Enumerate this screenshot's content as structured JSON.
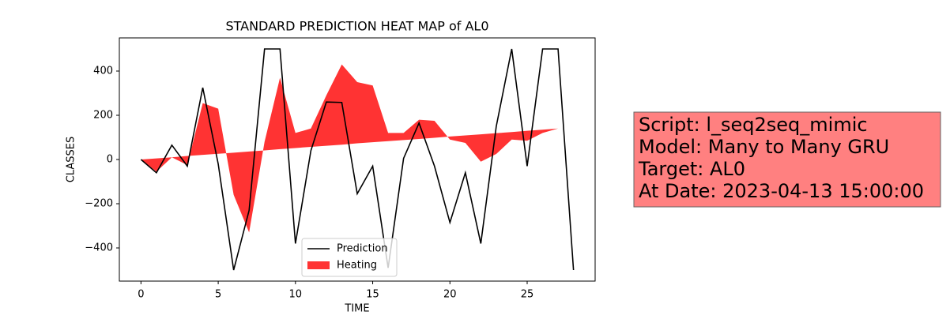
{
  "chart_data": {
    "type": "line",
    "title": "STANDARD PREDICTION HEAT MAP of AL0",
    "x_label": "TIME",
    "y_label": "CLASSES",
    "x": [
      0,
      1,
      2,
      3,
      4,
      5,
      6,
      7,
      8,
      9,
      10,
      11,
      12,
      13,
      14,
      15,
      16,
      17,
      18,
      19,
      20,
      21,
      22,
      23,
      24,
      25,
      26,
      27,
      28
    ],
    "series": [
      {
        "name": "Prediction",
        "color": "#000000",
        "values": [
          0,
          -60,
          65,
          -30,
          325,
          -20,
          -500,
          -230,
          500,
          500,
          -380,
          40,
          260,
          258,
          -155,
          -30,
          -490,
          5,
          165,
          -30,
          -285,
          -60,
          -380,
          150,
          500,
          -30,
          500,
          500,
          -500
        ]
      },
      {
        "name": "Heating",
        "color": "#ff0000",
        "fill": true,
        "values": [
          0,
          -55,
          10,
          -25,
          255,
          230,
          -160,
          -330,
          80,
          370,
          120,
          140,
          290,
          430,
          350,
          335,
          120,
          120,
          180,
          175,
          90,
          75,
          -10,
          25,
          90,
          85,
          120,
          140,
          145
        ],
        "base": [
          0,
          5,
          10,
          16,
          21,
          26,
          31,
          36,
          41,
          47,
          52,
          57,
          62,
          67,
          73,
          78,
          83,
          88,
          93,
          98,
          104,
          109,
          114,
          119,
          124,
          130,
          135,
          140,
          145
        ]
      }
    ],
    "xlim": [
      -1.4,
      29.4
    ],
    "ylim": [
      -550,
      550
    ],
    "xticks": [
      0,
      5,
      10,
      15,
      20,
      25
    ],
    "yticks": [
      {
        "value": -400,
        "label": "−400"
      },
      {
        "value": -200,
        "label": "−200"
      },
      0,
      200,
      400
    ],
    "legend": "lower center",
    "annotation": [
      "Script: l_seq2seq_mimic",
      "Model: Many to Many GRU",
      "Target: AL0",
      "At Date: 2023-04-13 15:00:00"
    ]
  }
}
